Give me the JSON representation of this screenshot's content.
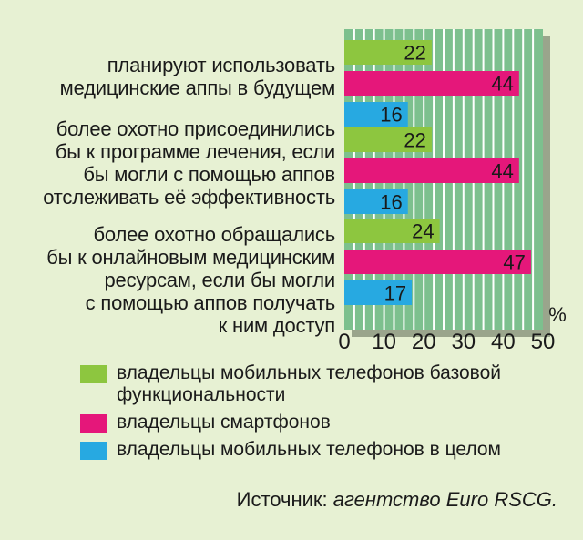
{
  "chart_data": {
    "type": "bar",
    "orientation": "horizontal",
    "categories": [
      "планируют использовать\nмедицинские аппы в будущем",
      "более охотно присоединились\nбы к программе лечения, если\nбы могли с помощью аппов\nотслеживать её эффективность",
      "более охотно обращались\nбы к онлайновым медицинским\nресурсам, если бы могли\nс помощью аппов получать\nк ним доступ"
    ],
    "series": [
      {
        "name": "владельцы мобильных телефонов базовой функциональности",
        "color": "#8dc63f",
        "values": [
          22,
          22,
          24
        ]
      },
      {
        "name": "владельцы смартфонов",
        "color": "#e5177a",
        "values": [
          44,
          44,
          47
        ]
      },
      {
        "name": "владельцы мобильных телефонов в целом",
        "color": "#27a9e1",
        "values": [
          16,
          16,
          17
        ]
      }
    ],
    "xlim": [
      0,
      50
    ],
    "xticks": [
      "0",
      "10",
      "20",
      "30",
      "40",
      "50"
    ],
    "unit": "%",
    "grid": true,
    "plot_background": "#7dc08e",
    "legend_position": "bottom"
  },
  "source": {
    "prefix": "Источник:",
    "text": "агентство Euro RSCG."
  }
}
